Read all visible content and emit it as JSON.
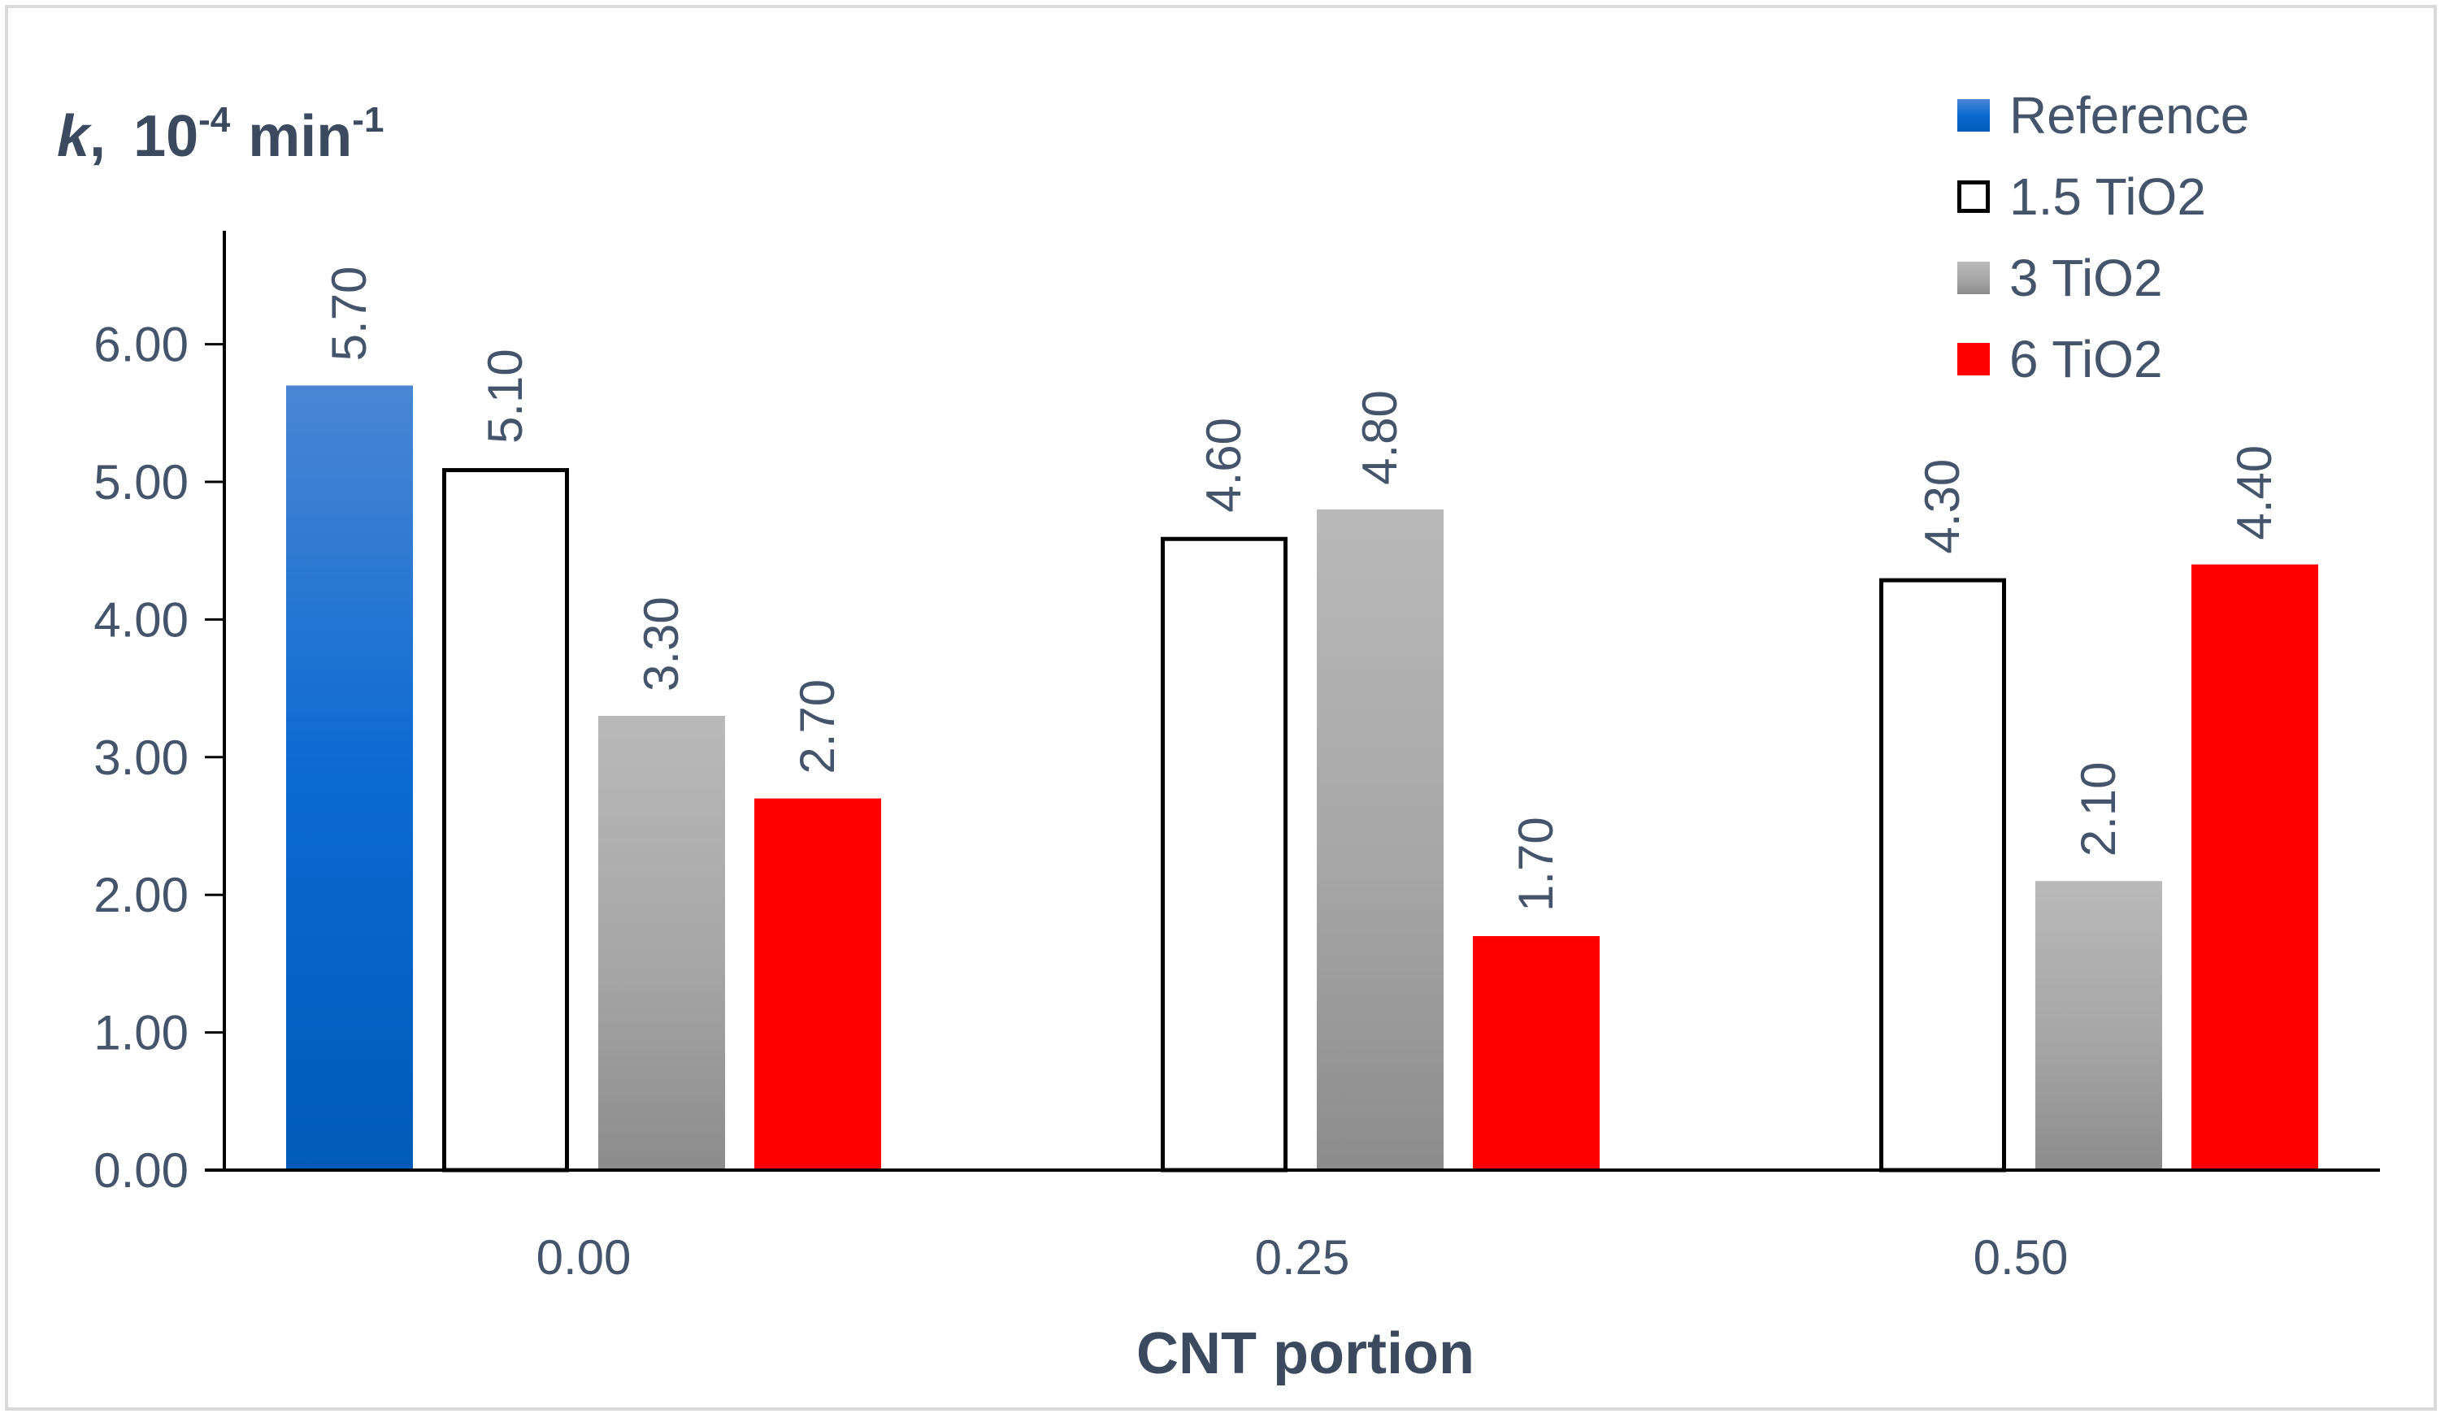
{
  "chart_data": {
    "type": "bar",
    "title": "",
    "ylabel_parts": {
      "symbol": "k",
      "separator": ",",
      "base": "10",
      "exp": "-4",
      "unit": "min",
      "unit_exp": "-1"
    },
    "xlabel": "CNT portion",
    "categories": [
      "0.00",
      "0.25",
      "0.50"
    ],
    "ylim": [
      0,
      6.5
    ],
    "yticks": [
      0,
      1,
      2,
      3,
      4,
      5,
      6
    ],
    "ytick_labels": [
      "0.00",
      "1.00",
      "2.00",
      "3.00",
      "4.00",
      "5.00",
      "6.00"
    ],
    "legend_position": "top-right",
    "series": [
      {
        "name": "Reference",
        "style": "blue-gradient",
        "colors": [
          "#4a86d4",
          "#0b6ad2",
          "#005bb8"
        ],
        "values": [
          5.7,
          null,
          null
        ],
        "labels": [
          "5.70",
          null,
          null
        ]
      },
      {
        "name": "1.5 TiO2",
        "style": "outline",
        "colors": [
          "#ffffff",
          "#000000"
        ],
        "values": [
          5.1,
          4.6,
          4.3
        ],
        "labels": [
          "5.10",
          "4.60",
          "4.30"
        ]
      },
      {
        "name": "3 TiO2",
        "style": "gray-gradient",
        "colors": [
          "#b9b9b9",
          "#a6a6a6",
          "#8c8c8c"
        ],
        "values": [
          3.3,
          4.8,
          2.1
        ],
        "labels": [
          "3.30",
          "4.80",
          "2.10"
        ]
      },
      {
        "name": "6 TiO2",
        "style": "solid",
        "colors": [
          "#ff0000"
        ],
        "values": [
          2.7,
          1.7,
          4.4
        ],
        "labels": [
          "2.70",
          "1.70",
          "4.40"
        ]
      }
    ]
  }
}
